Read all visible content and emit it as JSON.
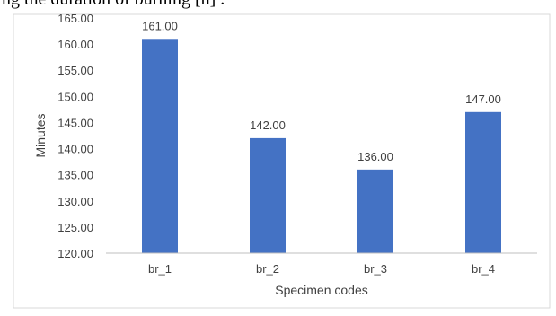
{
  "page": {
    "clipped_caption": "ng the duration of burning [h] ."
  },
  "chart_data": {
    "type": "bar",
    "title": "",
    "xlabel": "Specimen codes",
    "ylabel": "Minutes",
    "categories": [
      "br_1",
      "br_2",
      "br_3",
      "br_4"
    ],
    "values": [
      161.0,
      142.0,
      136.0,
      147.0
    ],
    "data_labels": [
      "161.00",
      "142.00",
      "136.00",
      "147.00"
    ],
    "ylim": [
      120,
      165
    ],
    "yticks": [
      120,
      125,
      130,
      135,
      140,
      145,
      150,
      155,
      160,
      165
    ],
    "ytick_labels": [
      "120.00",
      "125.00",
      "130.00",
      "135.00",
      "140.00",
      "145.00",
      "150.00",
      "155.00",
      "160.00",
      "165.00"
    ],
    "grid": false,
    "legend": "none",
    "bar_color": "#4472C4",
    "axis_color": "#BFBFBF",
    "text_color": "#404040"
  }
}
